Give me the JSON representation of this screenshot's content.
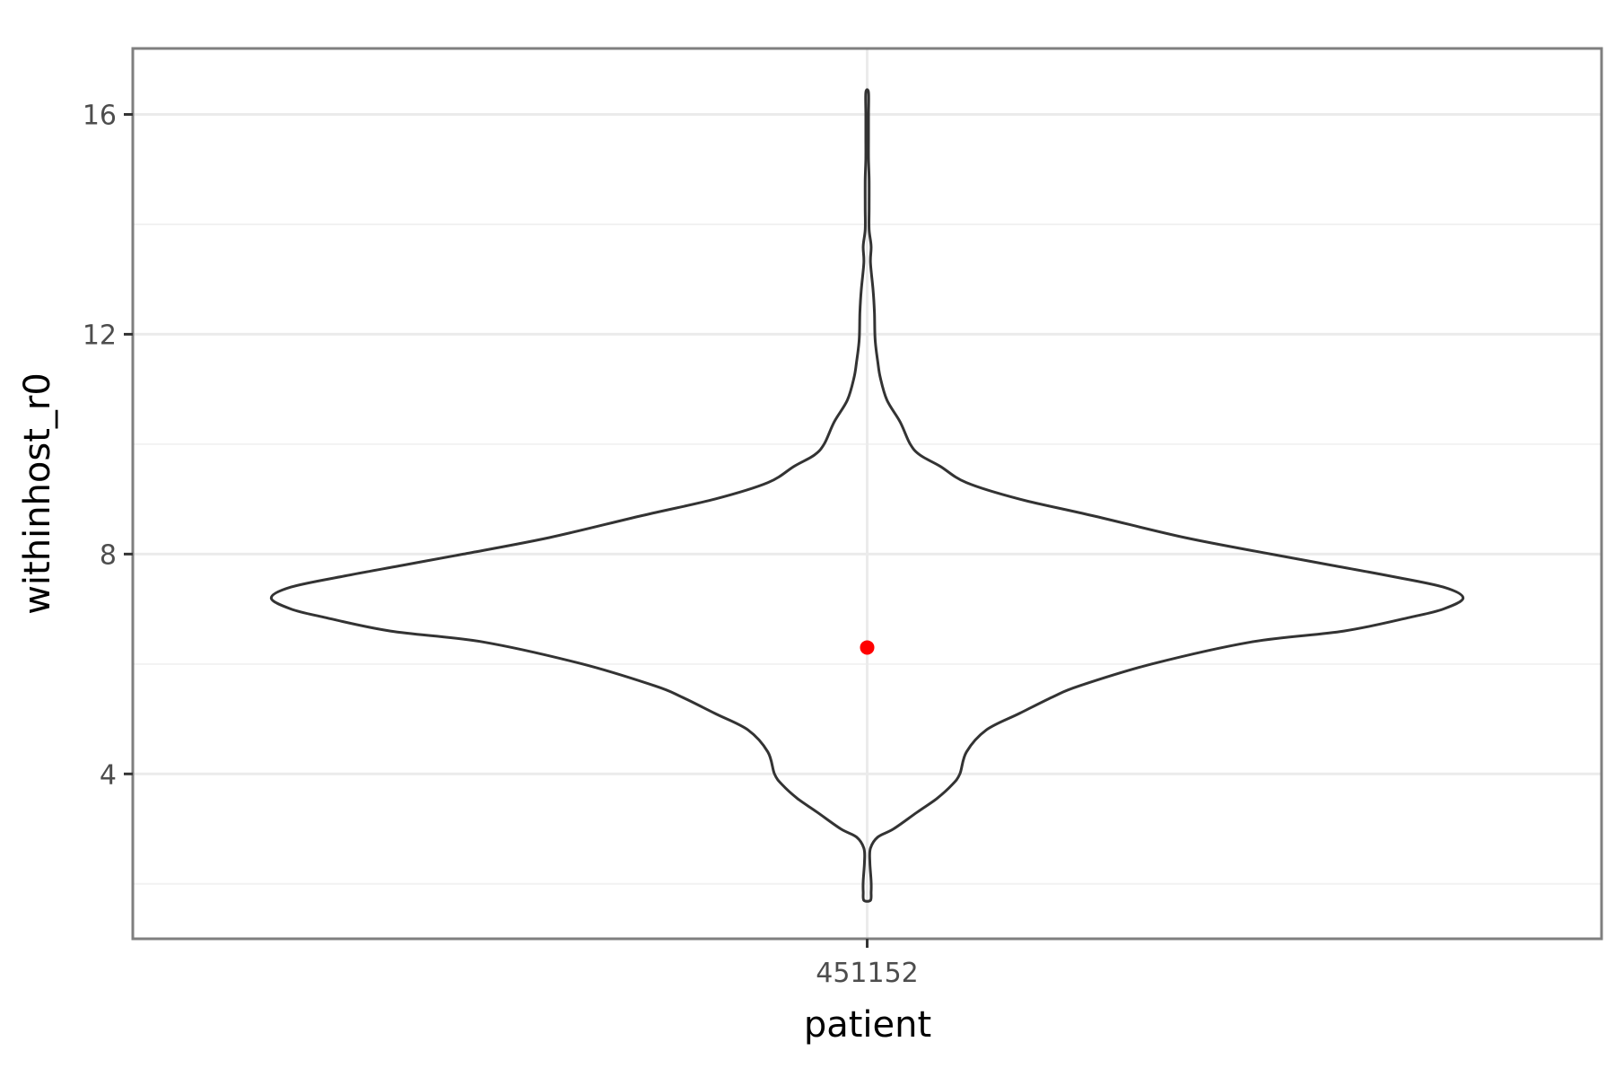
{
  "chart_data": {
    "type": "violin",
    "xlabel": "patient",
    "ylabel": "withinhost_r0",
    "categories": [
      "451152"
    ],
    "ylim": [
      1,
      17.2
    ],
    "y_ticks": [
      4,
      8,
      12,
      16
    ],
    "y_tick_labels": [
      "4",
      "8",
      "12",
      "16"
    ],
    "x_tick_labels": [
      "451152"
    ],
    "grid": true,
    "panel_border": true,
    "point": {
      "category": "451152",
      "value": 6.3,
      "color": "#ff0000"
    },
    "violin_outline_color": "#333333",
    "density_profile": {
      "category": "451152",
      "y": [
        1.7,
        1.85,
        2.05,
        2.4,
        2.65,
        2.85,
        3.0,
        3.3,
        3.55,
        3.8,
        4.0,
        4.4,
        4.8,
        5.1,
        5.4,
        5.6,
        6.0,
        6.4,
        6.6,
        6.85,
        7.0,
        7.2,
        7.4,
        7.6,
        7.8,
        8.0,
        8.3,
        8.7,
        9.0,
        9.3,
        9.6,
        9.8,
        10.0,
        10.4,
        10.8,
        11.2,
        11.5,
        11.9,
        12.4,
        12.8,
        13.3,
        13.6,
        13.9,
        14.3,
        14.8,
        15.2,
        15.6,
        16.0,
        16.4
      ],
      "half_width": [
        0.005,
        0.006,
        0.006,
        0.004,
        0.005,
        0.016,
        0.04,
        0.075,
        0.105,
        0.128,
        0.14,
        0.15,
        0.18,
        0.23,
        0.28,
        0.32,
        0.43,
        0.58,
        0.72,
        0.82,
        0.87,
        0.9,
        0.87,
        0.79,
        0.7,
        0.61,
        0.48,
        0.34,
        0.23,
        0.15,
        0.11,
        0.08,
        0.065,
        0.05,
        0.03,
        0.02,
        0.016,
        0.012,
        0.011,
        0.009,
        0.005,
        0.006,
        0.003,
        0.003,
        0.003,
        0.002,
        0.002,
        0.002,
        0.002
      ]
    }
  }
}
